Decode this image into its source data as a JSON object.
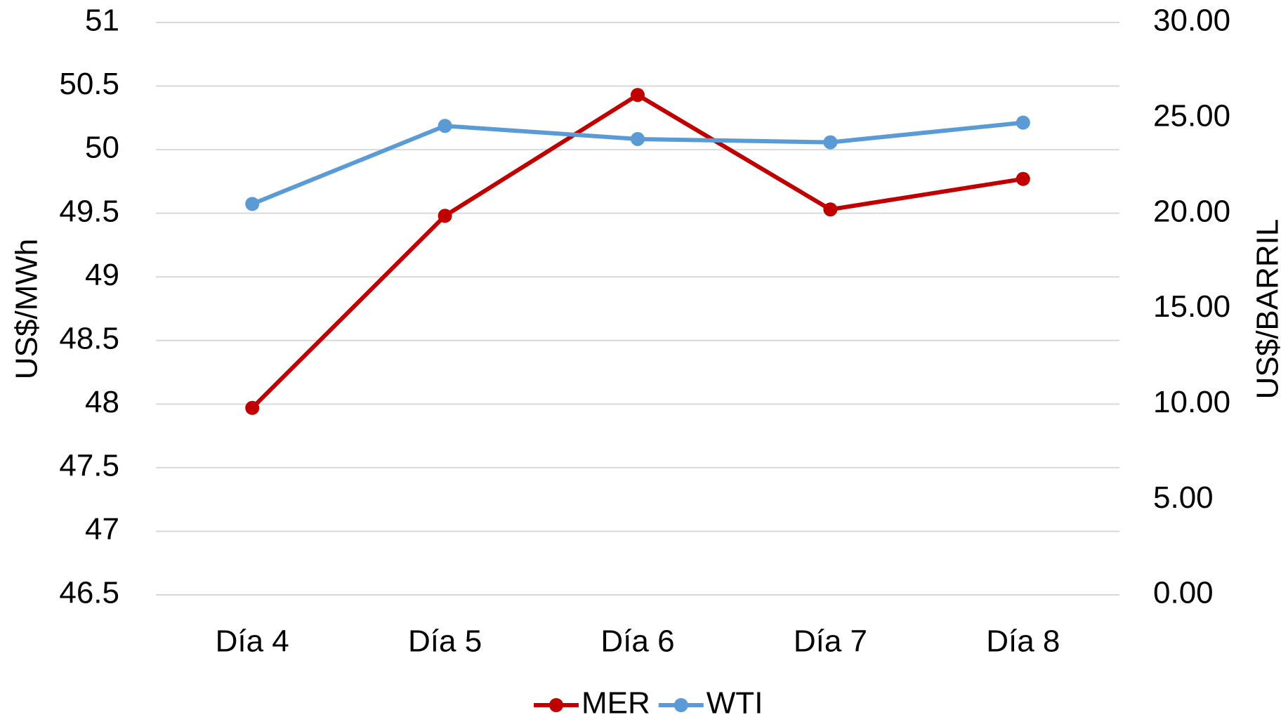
{
  "chart_data": {
    "type": "line",
    "categories": [
      "Día 4",
      "Día 5",
      "Día 6",
      "Día 7",
      "Día 8"
    ],
    "series": [
      {
        "name": "MER",
        "color": "#c00000",
        "values": [
          47.97,
          49.48,
          50.43,
          49.53,
          49.77
        ]
      },
      {
        "name": "WTI",
        "color": "#5b9bd5",
        "axis": "y2",
        "values": [
          20.49,
          24.58,
          23.89,
          23.72,
          24.75
        ]
      }
    ],
    "ylabel": "US$/MWh",
    "y2label": "US$/BARRIL",
    "ylim": [
      46.5,
      51
    ],
    "yticks": [
      46.5,
      47,
      47.5,
      48,
      48.5,
      49,
      49.5,
      50,
      50.5,
      51
    ],
    "y2lim": [
      0,
      30
    ],
    "y2ticks": [
      {
        "value": 0,
        "label": "0.00"
      },
      {
        "value": 5,
        "label": "5.00"
      },
      {
        "value": 10,
        "label": "10.00"
      },
      {
        "value": 15,
        "label": "15.00"
      },
      {
        "value": 20,
        "label": "20.00"
      },
      {
        "value": 25,
        "label": "25.00"
      },
      {
        "value": 30,
        "label": "30.00"
      }
    ],
    "grid": true,
    "legend": "bottom"
  }
}
